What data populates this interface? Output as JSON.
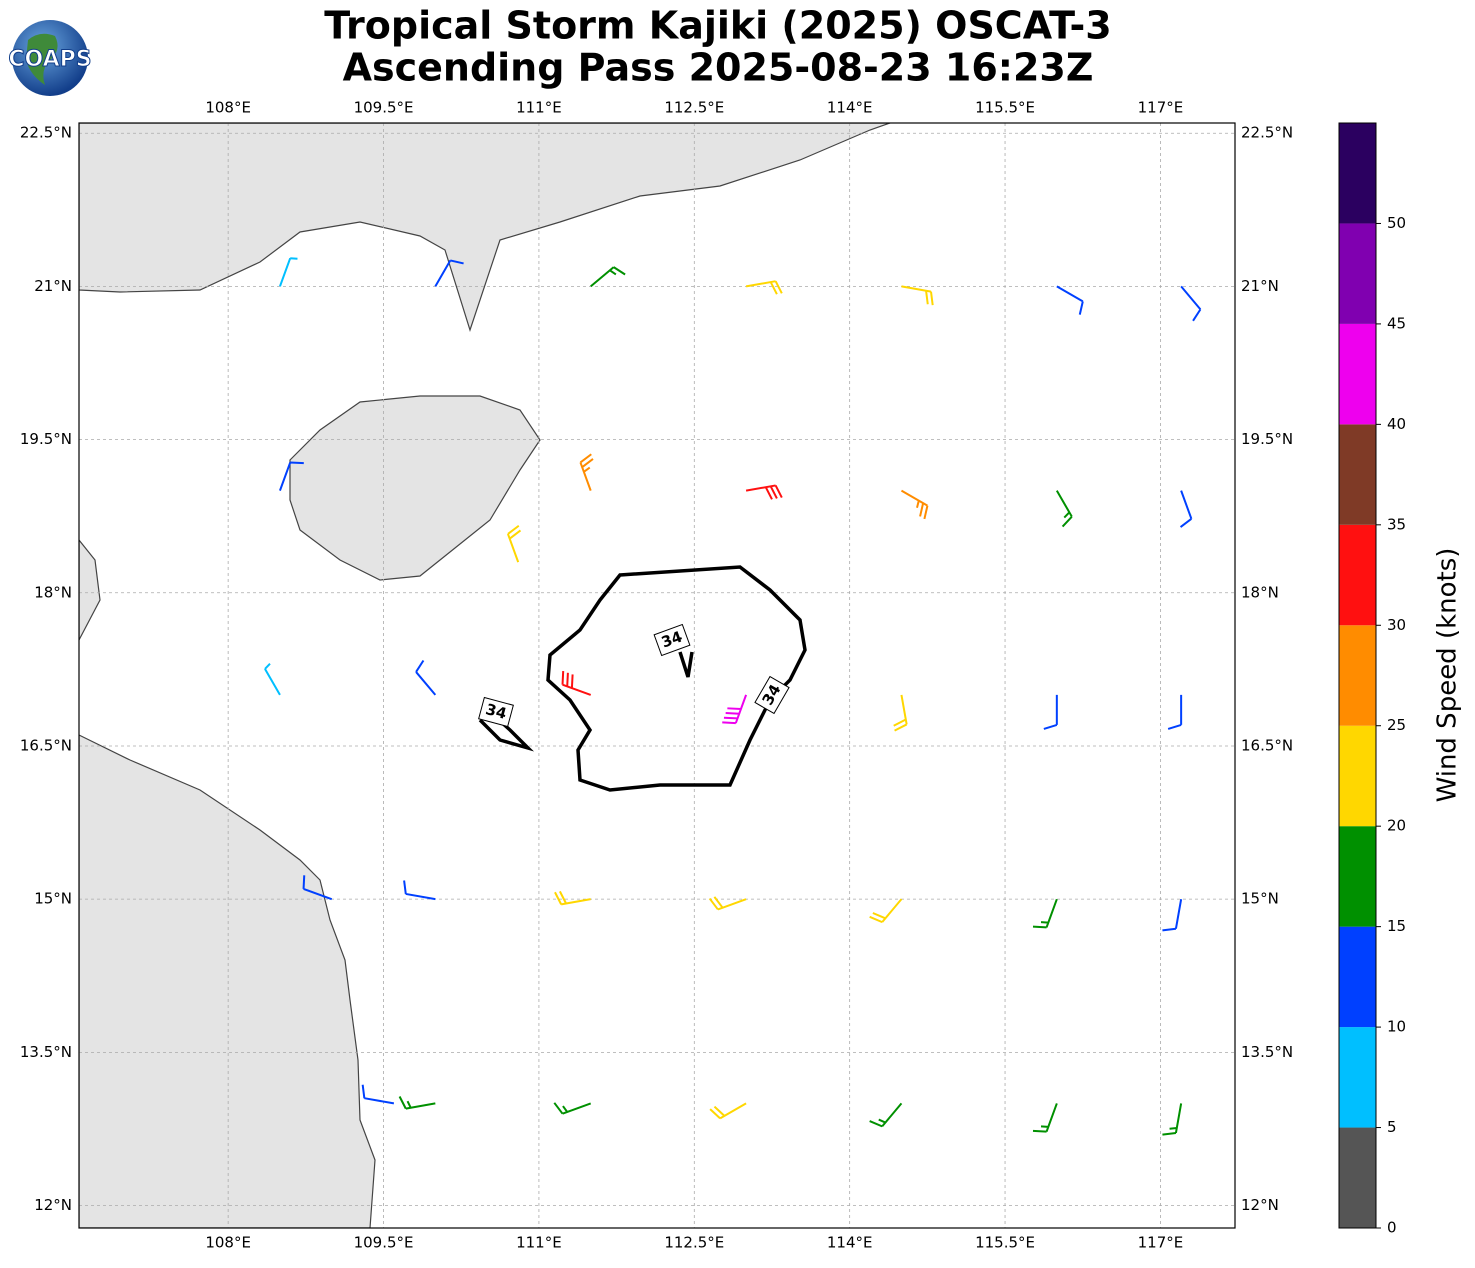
{
  "chart_data": {
    "type": "wind_barbs",
    "title_lines": [
      "Tropical Storm Kajiki (2025) OSCAT-3",
      "Ascending Pass 2025-08-23 16:23Z"
    ],
    "logo_text": "COAPS",
    "xlim": [
      106.56,
      117.72
    ],
    "ylim": [
      11.78,
      22.6
    ],
    "xticks": [
      {
        "value": 108,
        "label": "108°E"
      },
      {
        "value": 109.5,
        "label": "109.5°E"
      },
      {
        "value": 111,
        "label": "111°E"
      },
      {
        "value": 112.5,
        "label": "112.5°E"
      },
      {
        "value": 114,
        "label": "114°E"
      },
      {
        "value": 115.5,
        "label": "115.5°E"
      },
      {
        "value": 117,
        "label": "117°E"
      }
    ],
    "yticks": [
      {
        "value": 12,
        "label": "12°N"
      },
      {
        "value": 13.5,
        "label": "13.5°N"
      },
      {
        "value": 15,
        "label": "15°N"
      },
      {
        "value": 16.5,
        "label": "16.5°N"
      },
      {
        "value": 18,
        "label": "18°N"
      },
      {
        "value": 19.5,
        "label": "19.5°N"
      },
      {
        "value": 21,
        "label": "21°N"
      },
      {
        "value": 22.5,
        "label": "22.5°N"
      }
    ],
    "grid": true,
    "contour_level": 34,
    "barbs": {
      "lon": [
        109.6,
        110,
        111.5,
        113,
        114.5,
        116,
        117.2,
        109.0,
        110,
        111.5,
        113,
        114.5,
        116,
        117.2,
        108.5,
        110,
        111.5,
        113,
        114.5,
        116,
        117.2,
        108.5,
        110.8,
        111.5,
        113,
        114.5,
        116,
        117.2,
        108.5,
        110,
        111.5,
        113,
        114.5,
        116,
        117.2
      ],
      "lat": [
        13,
        13,
        13,
        13,
        13,
        13,
        13,
        15,
        15,
        15,
        15,
        15,
        15,
        15,
        17,
        17,
        17,
        17,
        17,
        17,
        17,
        19,
        18.3,
        19,
        19,
        19,
        19,
        19,
        21,
        21,
        21,
        21,
        21,
        21,
        21
      ],
      "speed": [
        12,
        15,
        18,
        20,
        18,
        15,
        17,
        12,
        12,
        22,
        22,
        20,
        16,
        14,
        8,
        12,
        33,
        42,
        24,
        14,
        12,
        10,
        22,
        27,
        30,
        26,
        18,
        14,
        8,
        12,
        18,
        22,
        20,
        14,
        14
      ],
      "direction": [
        280,
        260,
        250,
        240,
        220,
        200,
        190,
        290,
        280,
        260,
        250,
        220,
        200,
        190,
        330,
        320,
        290,
        200,
        170,
        180,
        180,
        20,
        340,
        340,
        80,
        120,
        150,
        160,
        20,
        30,
        50,
        80,
        100,
        120,
        140
      ]
    },
    "colorbar": {
      "label": "Wind Speed (knots)",
      "bounds": [
        0,
        5,
        10,
        15,
        20,
        25,
        30,
        35,
        40,
        45,
        50,
        55
      ],
      "colors": [
        "#555555",
        "#00bfff",
        "#0040ff",
        "#009000",
        "#ffd700",
        "#ff8c00",
        "#ff1010",
        "#7f3a26",
        "#ee00ee",
        "#8000b0",
        "#2b0060"
      ],
      "ticks": [
        0,
        5,
        10,
        15,
        20,
        25,
        30,
        35,
        40,
        45,
        50
      ]
    }
  }
}
